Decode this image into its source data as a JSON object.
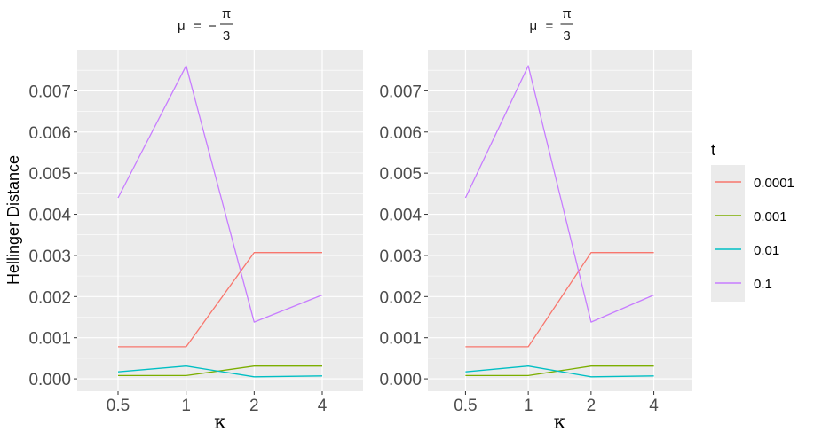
{
  "chart_data": {
    "type": "line",
    "ylabel": "Hellinger Distance",
    "xlabel": "κ",
    "categories": [
      "0.5",
      "1",
      "2",
      "4"
    ],
    "ylim": [
      -0.0003,
      0.008
    ],
    "yticks": [
      0.0,
      0.001,
      0.002,
      0.003,
      0.004,
      0.005,
      0.006,
      0.007
    ],
    "ytick_labels": [
      "0.000",
      "0.001",
      "0.002",
      "0.003",
      "0.004",
      "0.005",
      "0.006",
      "0.007"
    ],
    "grid": true,
    "legend": {
      "title": "t",
      "position": "right",
      "entries": [
        "0.0001",
        "0.001",
        "0.01",
        "0.1"
      ]
    },
    "panels": [
      {
        "strip": {
          "mu": "μ",
          "eq": "=",
          "sign": "−",
          "numerator": "π",
          "denominator": "3"
        },
        "series": [
          {
            "name": "0.0001",
            "color": "#F8766D",
            "values": [
              0.00078,
              0.00078,
              0.00307,
              0.00307
            ]
          },
          {
            "name": "0.001",
            "color": "#7CAE00",
            "values": [
              8e-05,
              8e-05,
              0.00031,
              0.00031
            ]
          },
          {
            "name": "0.01",
            "color": "#00BFC4",
            "values": [
              0.00017,
              0.00031,
              5e-05,
              7e-05
            ]
          },
          {
            "name": "0.1",
            "color": "#C77CFF",
            "values": [
              0.0044,
              0.00761,
              0.00138,
              0.00204
            ]
          }
        ]
      },
      {
        "strip": {
          "mu": "μ",
          "eq": "=",
          "sign": "",
          "numerator": "π",
          "denominator": "3"
        },
        "series": [
          {
            "name": "0.0001",
            "color": "#F8766D",
            "values": [
              0.00078,
              0.00078,
              0.00307,
              0.00307
            ]
          },
          {
            "name": "0.001",
            "color": "#7CAE00",
            "values": [
              8e-05,
              8e-05,
              0.00031,
              0.00031
            ]
          },
          {
            "name": "0.01",
            "color": "#00BFC4",
            "values": [
              0.00017,
              0.00031,
              5e-05,
              7e-05
            ]
          },
          {
            "name": "0.1",
            "color": "#C77CFF",
            "values": [
              0.0044,
              0.00761,
              0.00138,
              0.00204
            ]
          }
        ]
      }
    ]
  }
}
